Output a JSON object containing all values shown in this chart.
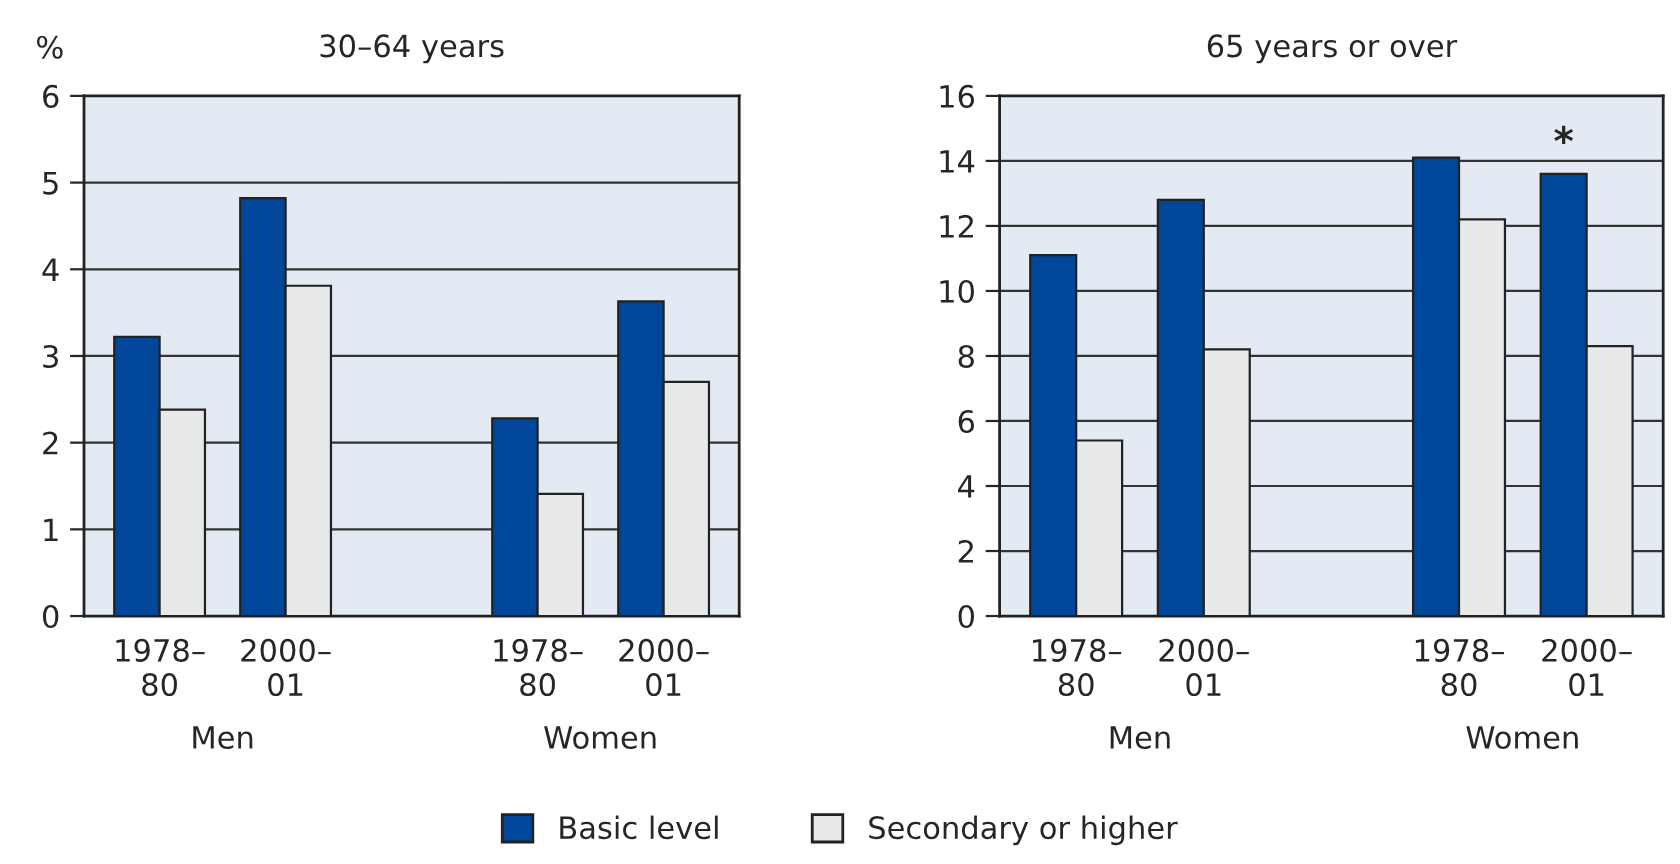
{
  "chart_data": [
    {
      "type": "bar",
      "title": "30–64 years",
      "ylabel": "%",
      "categories": [
        "1978–\n80",
        "2000–\n01",
        null,
        "1978–\n80",
        "2000–\n01"
      ],
      "series": [
        {
          "name": "Basic level",
          "color": "#00479a",
          "values": [
            3.22,
            4.82,
            null,
            2.28,
            3.63
          ]
        },
        {
          "name": "Secondary or higher",
          "color": "#e8eaea",
          "values": [
            2.38,
            3.81,
            null,
            1.41,
            2.7
          ]
        }
      ],
      "ylim": [
        0,
        6
      ],
      "yticks": [
        0,
        1,
        2,
        3,
        4,
        5,
        6
      ],
      "grid": "y",
      "legend": "bottom",
      "annotations": [
        "Men",
        "Women"
      ]
    },
    {
      "type": "bar",
      "title": "65 years or over",
      "categories": [
        "1978–\n80",
        "2000–\n01",
        null,
        "1978–\n80",
        "2000–\n01"
      ],
      "series": [
        {
          "name": "Basic level",
          "color": "#00479a",
          "values": [
            11.1,
            12.8,
            null,
            14.1,
            13.6
          ],
          "value_labels": [
            null,
            null,
            null,
            null,
            "*"
          ]
        },
        {
          "name": "Secondary or higher",
          "color": "#e8eaea",
          "values": [
            5.4,
            8.2,
            null,
            12.2,
            8.3
          ]
        }
      ],
      "ylim": [
        0,
        16
      ],
      "yticks": [
        0,
        2,
        4,
        6,
        8,
        10,
        12,
        14,
        16
      ],
      "grid": "y",
      "annotations": [
        "Men",
        "Women"
      ]
    }
  ]
}
